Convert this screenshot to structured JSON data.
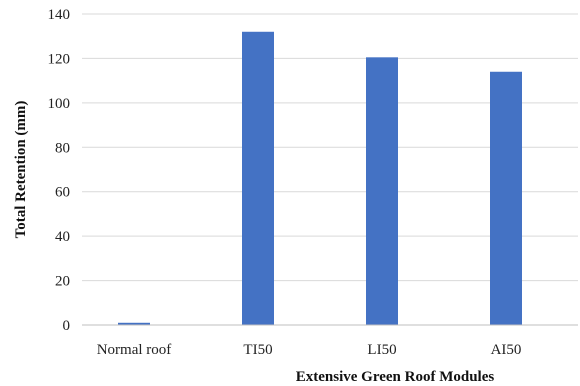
{
  "chart_data": {
    "type": "bar",
    "categories": [
      "Normal roof",
      "TI50",
      "LI50",
      "AI50"
    ],
    "values": [
      1,
      132,
      120.5,
      114
    ],
    "xlabel": "Extensive Green Roof Modules",
    "ylabel": "Total Retention  (mm)",
    "ylim": [
      0,
      140
    ],
    "yticks": [
      0,
      20,
      40,
      60,
      80,
      100,
      120,
      140
    ],
    "grid": true,
    "legend": "none",
    "colors": {
      "bar": "#4472c4",
      "grid": "#d9d9d9"
    }
  }
}
